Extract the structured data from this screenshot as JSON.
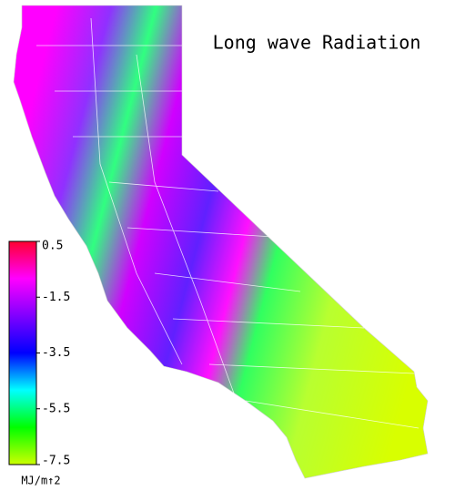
{
  "title": "Long wave Radiation",
  "colorbar": {
    "limits": [
      -7.5,
      0.5
    ],
    "ticks": [
      0.5,
      -1.5,
      -3.5,
      -5.5,
      -7.5
    ],
    "unit": "MJ/m↑2",
    "colors": [
      "#ff0030",
      "#ff00ff",
      "#8000ff",
      "#0000ff",
      "#00ffff",
      "#00ff00",
      "#ccff00"
    ]
  }
}
